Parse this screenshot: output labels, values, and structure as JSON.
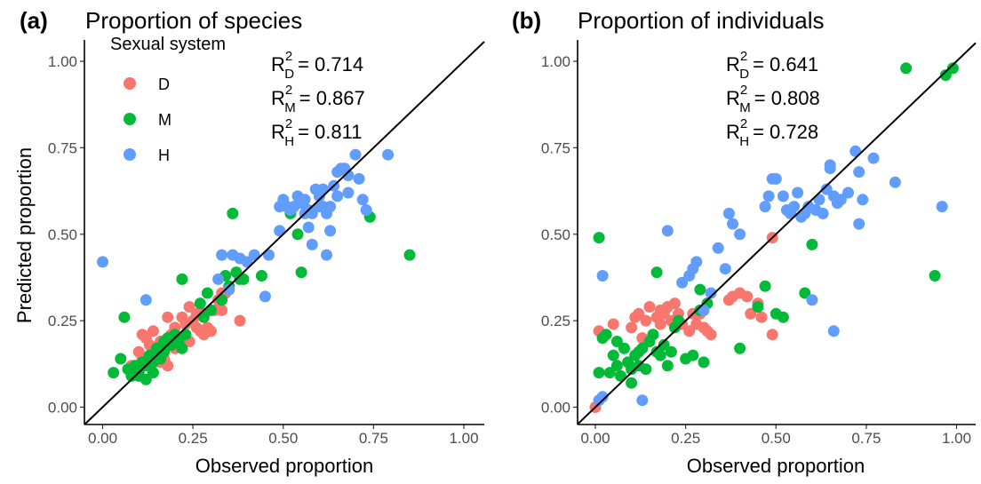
{
  "colors": {
    "D": "#F8766D",
    "M": "#00BA38",
    "H": "#619CFF",
    "line": "#000000",
    "axis": "#000000"
  },
  "legend": {
    "title": "Sexual system",
    "items": [
      {
        "key": "D",
        "label": "D"
      },
      {
        "key": "M",
        "label": "M"
      },
      {
        "key": "H",
        "label": "H"
      }
    ]
  },
  "chart_data": [
    {
      "type": "scatter",
      "tag": "(a)",
      "title": "Proportion of species",
      "xlabel": "Observed proportion",
      "ylabel": "Predicted proportion",
      "xlim": [
        0,
        1
      ],
      "ylim": [
        0,
        1
      ],
      "xticks": [
        "0.00",
        "0.25",
        "0.50",
        "0.75",
        "1.00"
      ],
      "yticks": [
        "0.00",
        "0.25",
        "0.50",
        "0.75",
        "1.00"
      ],
      "reference_line": "y = x",
      "r2": [
        {
          "sub": "D",
          "label": "R",
          "sup": "2",
          "value": "= 0.714"
        },
        {
          "sub": "M",
          "label": "R",
          "sup": "2",
          "value": "= 0.867"
        },
        {
          "sub": "H",
          "label": "R",
          "sup": "2",
          "value": "= 0.811"
        }
      ],
      "series": [
        {
          "name": "D",
          "points": [
            [
              0.08,
              0.12
            ],
            [
              0.1,
              0.16
            ],
            [
              0.11,
              0.21
            ],
            [
              0.12,
              0.2
            ],
            [
              0.13,
              0.18
            ],
            [
              0.14,
              0.22
            ],
            [
              0.15,
              0.17
            ],
            [
              0.16,
              0.19
            ],
            [
              0.17,
              0.14
            ],
            [
              0.18,
              0.12
            ],
            [
              0.18,
              0.26
            ],
            [
              0.19,
              0.21
            ],
            [
              0.2,
              0.23
            ],
            [
              0.21,
              0.18
            ],
            [
              0.22,
              0.26
            ],
            [
              0.22,
              0.2
            ],
            [
              0.23,
              0.24
            ],
            [
              0.24,
              0.29
            ],
            [
              0.24,
              0.19
            ],
            [
              0.25,
              0.25
            ],
            [
              0.26,
              0.27
            ],
            [
              0.27,
              0.22
            ],
            [
              0.28,
              0.21
            ],
            [
              0.28,
              0.27
            ],
            [
              0.29,
              0.23
            ],
            [
              0.3,
              0.22
            ],
            [
              0.31,
              0.28
            ],
            [
              0.32,
              0.31
            ],
            [
              0.33,
              0.33
            ],
            [
              0.33,
              0.28
            ],
            [
              0.34,
              0.33
            ],
            [
              0.38,
              0.25
            ],
            [
              0.15,
              0.16
            ],
            [
              0.2,
              0.17
            ],
            [
              0.26,
              0.23
            ],
            [
              0.11,
              0.14
            ],
            [
              0.16,
              0.13
            ]
          ]
        },
        {
          "name": "M",
          "points": [
            [
              0.03,
              0.1
            ],
            [
              0.05,
              0.14
            ],
            [
              0.06,
              0.26
            ],
            [
              0.07,
              0.11
            ],
            [
              0.08,
              0.09
            ],
            [
              0.09,
              0.12
            ],
            [
              0.1,
              0.1
            ],
            [
              0.11,
              0.13
            ],
            [
              0.12,
              0.08
            ],
            [
              0.12,
              0.12
            ],
            [
              0.13,
              0.15
            ],
            [
              0.14,
              0.1
            ],
            [
              0.15,
              0.17
            ],
            [
              0.16,
              0.14
            ],
            [
              0.17,
              0.16
            ],
            [
              0.18,
              0.2
            ],
            [
              0.19,
              0.18
            ],
            [
              0.2,
              0.21
            ],
            [
              0.21,
              0.19
            ],
            [
              0.22,
              0.37
            ],
            [
              0.22,
              0.17
            ],
            [
              0.23,
              0.21
            ],
            [
              0.27,
              0.3
            ],
            [
              0.28,
              0.26
            ],
            [
              0.29,
              0.33
            ],
            [
              0.3,
              0.28
            ],
            [
              0.33,
              0.31
            ],
            [
              0.34,
              0.38
            ],
            [
              0.35,
              0.35
            ],
            [
              0.36,
              0.56
            ],
            [
              0.37,
              0.39
            ],
            [
              0.38,
              0.37
            ],
            [
              0.39,
              0.37
            ],
            [
              0.44,
              0.38
            ],
            [
              0.52,
              0.56
            ],
            [
              0.54,
              0.5
            ],
            [
              0.55,
              0.39
            ],
            [
              0.74,
              0.55
            ],
            [
              0.85,
              0.44
            ],
            [
              0.14,
              0.13
            ],
            [
              0.17,
              0.19
            ],
            [
              0.1,
              0.09
            ]
          ]
        },
        {
          "name": "H",
          "points": [
            [
              0.0,
              0.42
            ],
            [
              0.12,
              0.31
            ],
            [
              0.32,
              0.37
            ],
            [
              0.33,
              0.44
            ],
            [
              0.35,
              0.34
            ],
            [
              0.36,
              0.44
            ],
            [
              0.38,
              0.43
            ],
            [
              0.4,
              0.42
            ],
            [
              0.42,
              0.44
            ],
            [
              0.45,
              0.32
            ],
            [
              0.46,
              0.44
            ],
            [
              0.49,
              0.51
            ],
            [
              0.49,
              0.58
            ],
            [
              0.5,
              0.6
            ],
            [
              0.51,
              0.58
            ],
            [
              0.52,
              0.57
            ],
            [
              0.53,
              0.58
            ],
            [
              0.54,
              0.61
            ],
            [
              0.55,
              0.59
            ],
            [
              0.56,
              0.6
            ],
            [
              0.56,
              0.56
            ],
            [
              0.57,
              0.57
            ],
            [
              0.58,
              0.56
            ],
            [
              0.58,
              0.47
            ],
            [
              0.59,
              0.63
            ],
            [
              0.6,
              0.58
            ],
            [
              0.6,
              0.61
            ],
            [
              0.61,
              0.58
            ],
            [
              0.62,
              0.56
            ],
            [
              0.62,
              0.44
            ],
            [
              0.63,
              0.58
            ],
            [
              0.64,
              0.64
            ],
            [
              0.65,
              0.61
            ],
            [
              0.65,
              0.68
            ],
            [
              0.66,
              0.69
            ],
            [
              0.67,
              0.69
            ],
            [
              0.68,
              0.62
            ],
            [
              0.7,
              0.73
            ],
            [
              0.71,
              0.66
            ],
            [
              0.72,
              0.6
            ],
            [
              0.73,
              0.57
            ],
            [
              0.79,
              0.73
            ],
            [
              0.57,
              0.52
            ],
            [
              0.63,
              0.51
            ],
            [
              0.68,
              0.67
            ],
            [
              0.61,
              0.63
            ]
          ]
        }
      ]
    },
    {
      "type": "scatter",
      "tag": "(b)",
      "title": "Proportion of individuals",
      "xlabel": "Observed proportion",
      "ylabel": "",
      "xlim": [
        0,
        1
      ],
      "ylim": [
        0,
        1
      ],
      "xticks": [
        "0.00",
        "0.25",
        "0.50",
        "0.75",
        "1.00"
      ],
      "yticks": [
        "0.00",
        "0.25",
        "0.50",
        "0.75",
        "1.00"
      ],
      "reference_line": "y = x",
      "r2": [
        {
          "sub": "D",
          "label": "R",
          "sup": "2",
          "value": "= 0.641"
        },
        {
          "sub": "M",
          "label": "R",
          "sup": "2",
          "value": "= 0.808"
        },
        {
          "sub": "H",
          "label": "R",
          "sup": "2",
          "value": "= 0.728"
        }
      ],
      "series": [
        {
          "name": "D",
          "points": [
            [
              0.0,
              0.0
            ],
            [
              0.01,
              0.22
            ],
            [
              0.05,
              0.24
            ],
            [
              0.1,
              0.23
            ],
            [
              0.11,
              0.26
            ],
            [
              0.12,
              0.27
            ],
            [
              0.13,
              0.2
            ],
            [
              0.14,
              0.25
            ],
            [
              0.15,
              0.29
            ],
            [
              0.16,
              0.21
            ],
            [
              0.17,
              0.26
            ],
            [
              0.18,
              0.28
            ],
            [
              0.19,
              0.27
            ],
            [
              0.2,
              0.29
            ],
            [
              0.21,
              0.25
            ],
            [
              0.22,
              0.3
            ],
            [
              0.23,
              0.27
            ],
            [
              0.24,
              0.24
            ],
            [
              0.26,
              0.22
            ],
            [
              0.27,
              0.27
            ],
            [
              0.28,
              0.24
            ],
            [
              0.29,
              0.27
            ],
            [
              0.3,
              0.23
            ],
            [
              0.31,
              0.22
            ],
            [
              0.32,
              0.21
            ],
            [
              0.37,
              0.31
            ],
            [
              0.38,
              0.32
            ],
            [
              0.4,
              0.33
            ],
            [
              0.42,
              0.32
            ],
            [
              0.43,
              0.27
            ],
            [
              0.45,
              0.3
            ],
            [
              0.46,
              0.26
            ],
            [
              0.49,
              0.21
            ],
            [
              0.49,
              0.49
            ],
            [
              0.18,
              0.24
            ]
          ]
        },
        {
          "name": "M",
          "points": [
            [
              0.01,
              0.49
            ],
            [
              0.01,
              0.1
            ],
            [
              0.02,
              0.2
            ],
            [
              0.03,
              0.21
            ],
            [
              0.04,
              0.1
            ],
            [
              0.05,
              0.15
            ],
            [
              0.06,
              0.12
            ],
            [
              0.07,
              0.09
            ],
            [
              0.08,
              0.17
            ],
            [
              0.09,
              0.13
            ],
            [
              0.1,
              0.11
            ],
            [
              0.1,
              0.07
            ],
            [
              0.11,
              0.15
            ],
            [
              0.12,
              0.16
            ],
            [
              0.13,
              0.17
            ],
            [
              0.14,
              0.11
            ],
            [
              0.15,
              0.19
            ],
            [
              0.16,
              0.21
            ],
            [
              0.17,
              0.39
            ],
            [
              0.17,
              0.16
            ],
            [
              0.18,
              0.15
            ],
            [
              0.19,
              0.18
            ],
            [
              0.2,
              0.12
            ],
            [
              0.21,
              0.16
            ],
            [
              0.22,
              0.23
            ],
            [
              0.23,
              0.25
            ],
            [
              0.25,
              0.14
            ],
            [
              0.27,
              0.15
            ],
            [
              0.29,
              0.34
            ],
            [
              0.29,
              0.28
            ],
            [
              0.3,
              0.13
            ],
            [
              0.31,
              0.3
            ],
            [
              0.4,
              0.17
            ],
            [
              0.45,
              0.29
            ],
            [
              0.47,
              0.35
            ],
            [
              0.5,
              0.27
            ],
            [
              0.52,
              0.26
            ],
            [
              0.58,
              0.33
            ],
            [
              0.6,
              0.47
            ],
            [
              0.94,
              0.38
            ],
            [
              0.86,
              0.98
            ],
            [
              0.97,
              0.96
            ],
            [
              0.99,
              0.98
            ],
            [
              0.06,
              0.19
            ],
            [
              0.12,
              0.12
            ]
          ]
        },
        {
          "name": "H",
          "points": [
            [
              0.01,
              0.02
            ],
            [
              0.02,
              0.03
            ],
            [
              0.02,
              0.38
            ],
            [
              0.13,
              0.02
            ],
            [
              0.2,
              0.51
            ],
            [
              0.24,
              0.36
            ],
            [
              0.26,
              0.38
            ],
            [
              0.27,
              0.4
            ],
            [
              0.28,
              0.42
            ],
            [
              0.3,
              0.28
            ],
            [
              0.32,
              0.33
            ],
            [
              0.34,
              0.46
            ],
            [
              0.36,
              0.4
            ],
            [
              0.37,
              0.56
            ],
            [
              0.38,
              0.53
            ],
            [
              0.4,
              0.5
            ],
            [
              0.47,
              0.58
            ],
            [
              0.48,
              0.61
            ],
            [
              0.49,
              0.66
            ],
            [
              0.5,
              0.66
            ],
            [
              0.52,
              0.61
            ],
            [
              0.53,
              0.57
            ],
            [
              0.54,
              0.56
            ],
            [
              0.55,
              0.58
            ],
            [
              0.56,
              0.62
            ],
            [
              0.57,
              0.55
            ],
            [
              0.58,
              0.56
            ],
            [
              0.59,
              0.58
            ],
            [
              0.6,
              0.31
            ],
            [
              0.61,
              0.57
            ],
            [
              0.62,
              0.6
            ],
            [
              0.63,
              0.56
            ],
            [
              0.64,
              0.63
            ],
            [
              0.65,
              0.69
            ],
            [
              0.65,
              0.7
            ],
            [
              0.66,
              0.22
            ],
            [
              0.67,
              0.59
            ],
            [
              0.68,
              0.6
            ],
            [
              0.7,
              0.62
            ],
            [
              0.72,
              0.74
            ],
            [
              0.73,
              0.68
            ],
            [
              0.73,
              0.53
            ],
            [
              0.74,
              0.6
            ],
            [
              0.77,
              0.72
            ],
            [
              0.83,
              0.65
            ],
            [
              0.96,
              0.58
            ],
            [
              0.66,
              0.61
            ]
          ]
        }
      ]
    }
  ]
}
